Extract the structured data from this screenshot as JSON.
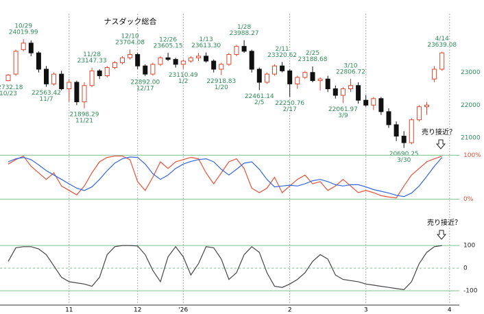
{
  "chart_data": [
    {
      "type": "candlestick",
      "title": "ナスダック総合",
      "ylim": [
        20600,
        24800
      ],
      "yticks": [
        21000,
        22000,
        23000
      ],
      "up_color": "#e0442c",
      "down_color": "#111111",
      "label_color": "#2e8b57",
      "open": [
        22750,
        22950,
        23700,
        23900,
        23600,
        23100,
        22650,
        22950,
        22500,
        22700,
        22100,
        22600,
        23050,
        22900,
        23150,
        23300,
        23450,
        23550,
        23200,
        22950,
        23250,
        23450,
        23400,
        23250,
        23350,
        23450,
        23500,
        23350,
        23100,
        23250,
        23550,
        23800,
        23650,
        23100,
        22700,
        22950,
        23200,
        23050,
        22650,
        22850,
        23000,
        22750,
        22800,
        22500,
        22300,
        22500,
        22600,
        22150,
        22000,
        22200,
        21800,
        21400,
        21050,
        20850,
        21550,
        21950,
        22800,
        23100,
        null
      ],
      "high": [
        22950,
        23700,
        24019.99,
        23980,
        23650,
        23200,
        23000,
        23050,
        22800,
        22750,
        22700,
        23147.33,
        23100,
        23200,
        23350,
        23500,
        23704.08,
        23600,
        23250,
        23300,
        23500,
        23605.15,
        23450,
        23400,
        23500,
        23600,
        23613.3,
        23400,
        23300,
        23600,
        23850,
        23988.27,
        23700,
        23150,
        23000,
        23250,
        23320.62,
        23100,
        22900,
        23050,
        23188.68,
        22850,
        22900,
        22600,
        22550,
        22806.72,
        22700,
        22300,
        22250,
        22250,
        21900,
        21500,
        21200,
        21600,
        22000,
        22100,
        23200,
        23639.08,
        null
      ],
      "low": [
        22732.18,
        22900,
        23650,
        23500,
        23000,
        22563.42,
        22600,
        22450,
        22100,
        22000,
        21898.29,
        22550,
        22800,
        22850,
        23100,
        23250,
        23400,
        23100,
        22892.0,
        22900,
        23200,
        23350,
        23150,
        23110.49,
        23300,
        23350,
        23300,
        23000,
        22918.83,
        23200,
        23500,
        23600,
        23000,
        22461.14,
        22650,
        22900,
        23000,
        22250.76,
        22500,
        22800,
        22700,
        22450,
        22400,
        22200,
        22061.97,
        22400,
        22050,
        21950,
        21850,
        21700,
        21300,
        20900,
        20690.25,
        20800,
        21500,
        21700,
        22700,
        23050,
        null
      ],
      "close": [
        22920,
        23650,
        23900,
        23600,
        23100,
        22650,
        22950,
        22500,
        22700,
        22100,
        22600,
        23050,
        22900,
        23150,
        23300,
        23450,
        23550,
        23200,
        22950,
        23250,
        23450,
        23400,
        23250,
        23350,
        23450,
        23500,
        23350,
        23100,
        23250,
        23550,
        23800,
        23650,
        23100,
        22700,
        22950,
        23200,
        23050,
        22650,
        22850,
        23000,
        22750,
        22800,
        22500,
        22300,
        22500,
        22600,
        22150,
        22000,
        22200,
        21800,
        21400,
        21050,
        20850,
        21550,
        21950,
        22000,
        23100,
        23600,
        null
      ],
      "labels": [
        {
          "at": "low",
          "price": "22732.18",
          "date": "10/23"
        },
        null,
        {
          "at": "high",
          "price": "24019.99",
          "date": "10/29"
        },
        null,
        null,
        {
          "at": "low",
          "price": "22563.42",
          "date": "11/7"
        },
        null,
        null,
        null,
        null,
        {
          "at": "low",
          "price": "21898.29",
          "date": "11/21"
        },
        {
          "at": "high",
          "price": "23147.33",
          "date": "11/28"
        },
        null,
        null,
        null,
        null,
        {
          "at": "high",
          "price": "23704.08",
          "date": "12/10"
        },
        null,
        {
          "at": "low",
          "price": "22892.00",
          "date": "12/17"
        },
        null,
        null,
        {
          "at": "high",
          "price": "23605.15",
          "date": "12/26"
        },
        null,
        {
          "at": "low",
          "price": "23110.49",
          "date": "1/2"
        },
        null,
        null,
        {
          "at": "high",
          "price": "23613.30",
          "date": "1/13"
        },
        null,
        {
          "at": "low",
          "price": "22918.83",
          "date": "1/20"
        },
        null,
        null,
        {
          "at": "high",
          "price": "23988.27",
          "date": "1/28"
        },
        null,
        {
          "at": "low",
          "price": "22461.14",
          "date": "2/5"
        },
        null,
        null,
        {
          "at": "high",
          "price": "23320.62",
          "date": "2/11"
        },
        {
          "at": "low",
          "price": "22250.76",
          "date": "2/17"
        },
        null,
        null,
        {
          "at": "high",
          "price": "23188.68",
          "date": "2/25"
        },
        null,
        null,
        null,
        {
          "at": "low",
          "price": "22061.97",
          "date": "3/9"
        },
        {
          "at": "high",
          "price": "22806.72",
          "date": "3/10"
        },
        null,
        null,
        null,
        null,
        null,
        null,
        {
          "at": "low",
          "price": "20690.25",
          "date": "3/30"
        },
        null,
        null,
        null,
        null,
        {
          "at": "high",
          "price": "23639.08",
          "date": "4/14"
        },
        null
      ]
    },
    {
      "type": "line",
      "ylim": [
        -10,
        110
      ],
      "yticks": [
        {
          "value": 100,
          "label": "100%"
        },
        {
          "value": 0,
          "label": "0%"
        }
      ],
      "grid": true,
      "tick_color": "#e8503a",
      "annotation": "売り接近？",
      "series": [
        {
          "color": "#e8503a",
          "values": [
            80,
            90,
            98,
            75,
            60,
            45,
            60,
            30,
            20,
            10,
            30,
            60,
            85,
            95,
            98,
            98,
            90,
            40,
            20,
            50,
            85,
            70,
            85,
            90,
            95,
            92,
            60,
            35,
            60,
            85,
            92,
            70,
            25,
            15,
            25,
            50,
            15,
            30,
            45,
            55,
            35,
            40,
            20,
            30,
            45,
            30,
            15,
            20,
            15,
            8,
            5,
            3,
            30,
            55,
            70,
            85,
            92,
            98,
            null
          ]
        },
        {
          "color": "#3366dd",
          "values": [
            85,
            92,
            95,
            90,
            78,
            65,
            55,
            45,
            35,
            25,
            20,
            28,
            45,
            65,
            82,
            92,
            96,
            95,
            80,
            58,
            45,
            55,
            70,
            80,
            86,
            90,
            92,
            85,
            68,
            55,
            68,
            82,
            85,
            68,
            45,
            28,
            30,
            32,
            30,
            35,
            42,
            45,
            40,
            33,
            30,
            33,
            33,
            28,
            22,
            18,
            14,
            9,
            6,
            14,
            30,
            52,
            75,
            95,
            null
          ]
        }
      ]
    },
    {
      "type": "line",
      "ylim": [
        -145,
        155
      ],
      "yticks": [
        100,
        0,
        -100
      ],
      "grid": true,
      "tick_color": "#222222",
      "annotation": "売り接近？",
      "categories": [
        null,
        null,
        null,
        null,
        null,
        null,
        null,
        null,
        "11",
        null,
        null,
        null,
        null,
        null,
        null,
        null,
        null,
        "12",
        null,
        null,
        null,
        null,
        null,
        "'26",
        null,
        null,
        null,
        null,
        null,
        null,
        null,
        null,
        null,
        null,
        null,
        null,
        null,
        "2",
        null,
        null,
        null,
        null,
        null,
        null,
        null,
        null,
        null,
        "3",
        null,
        null,
        null,
        null,
        null,
        null,
        null,
        null,
        null,
        null,
        "4"
      ],
      "series": [
        {
          "color": "#444444",
          "values": [
            30,
            90,
            95,
            95,
            85,
            60,
            10,
            -40,
            -60,
            -65,
            -70,
            -80,
            -40,
            60,
            95,
            100,
            100,
            98,
            60,
            -10,
            -60,
            50,
            95,
            50,
            -30,
            20,
            95,
            90,
            40,
            -50,
            -20,
            60,
            95,
            70,
            -20,
            -80,
            -85,
            -70,
            -50,
            -20,
            30,
            60,
            40,
            -30,
            -50,
            -55,
            -60,
            -70,
            -75,
            -80,
            -85,
            -90,
            -95,
            -60,
            20,
            70,
            95,
            100,
            null
          ]
        }
      ]
    }
  ]
}
